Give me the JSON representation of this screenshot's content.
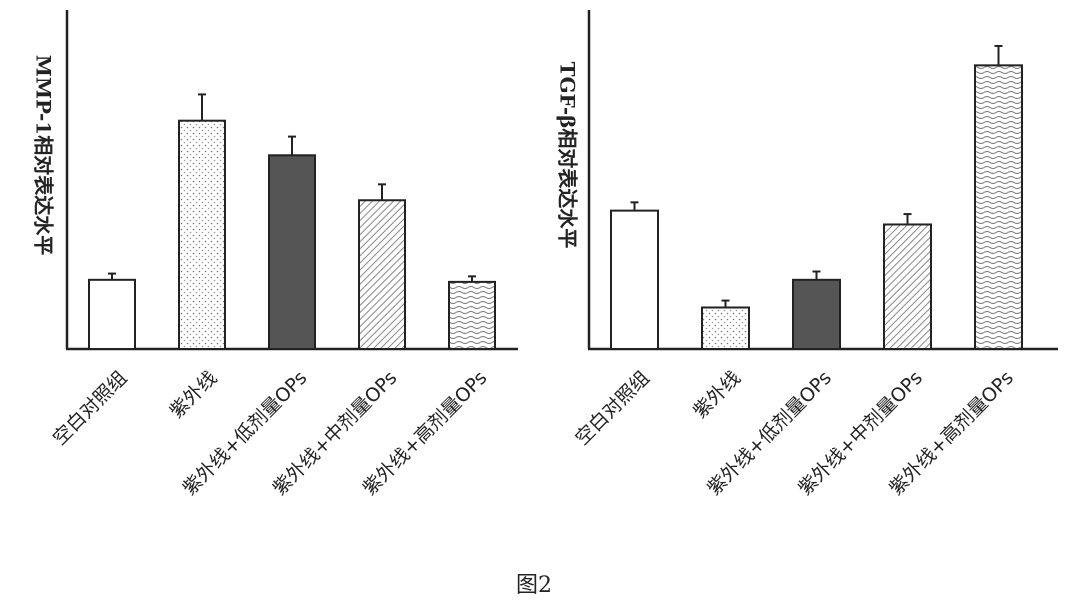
{
  "figure_caption": "图2",
  "colors": {
    "axis": "#222222",
    "bar_outline": "#222222",
    "dark_fill": "#555555",
    "background": "#ffffff"
  },
  "chart_data": [
    {
      "type": "bar",
      "title": "",
      "xlabel": "",
      "ylabel": "MMP-1相对表达水平",
      "categories": [
        "空白对照组",
        "紫外线",
        "紫外线+低剂量OPs",
        "紫外线+中剂量OPs",
        "紫外线+高剂量OPs"
      ],
      "patterns": [
        "white",
        "dotted",
        "dark-solid",
        "diagonal-hatch",
        "wavy"
      ],
      "values": [
        1.0,
        3.3,
        2.8,
        2.15,
        0.97
      ],
      "error": [
        0.09,
        0.38,
        0.27,
        0.23,
        0.08
      ],
      "ylim": [
        0,
        4.9
      ],
      "yticks_shown": false,
      "grid": false,
      "legend": "none"
    },
    {
      "type": "bar",
      "title": "",
      "xlabel": "",
      "ylabel": "TGF-β相对表达水平",
      "categories": [
        "空白对照组",
        "紫外线",
        "紫外线+低剂量OPs",
        "紫外线+中剂量OPs",
        "紫外线+高剂量OPs"
      ],
      "patterns": [
        "white",
        "dotted",
        "dark-solid",
        "diagonal-hatch",
        "wavy"
      ],
      "values": [
        2.0,
        0.6,
        1.0,
        1.8,
        4.1
      ],
      "error": [
        0.12,
        0.1,
        0.12,
        0.15,
        0.28
      ],
      "ylim": [
        0,
        4.9
      ],
      "yticks_shown": false,
      "grid": false,
      "legend": "none"
    }
  ]
}
